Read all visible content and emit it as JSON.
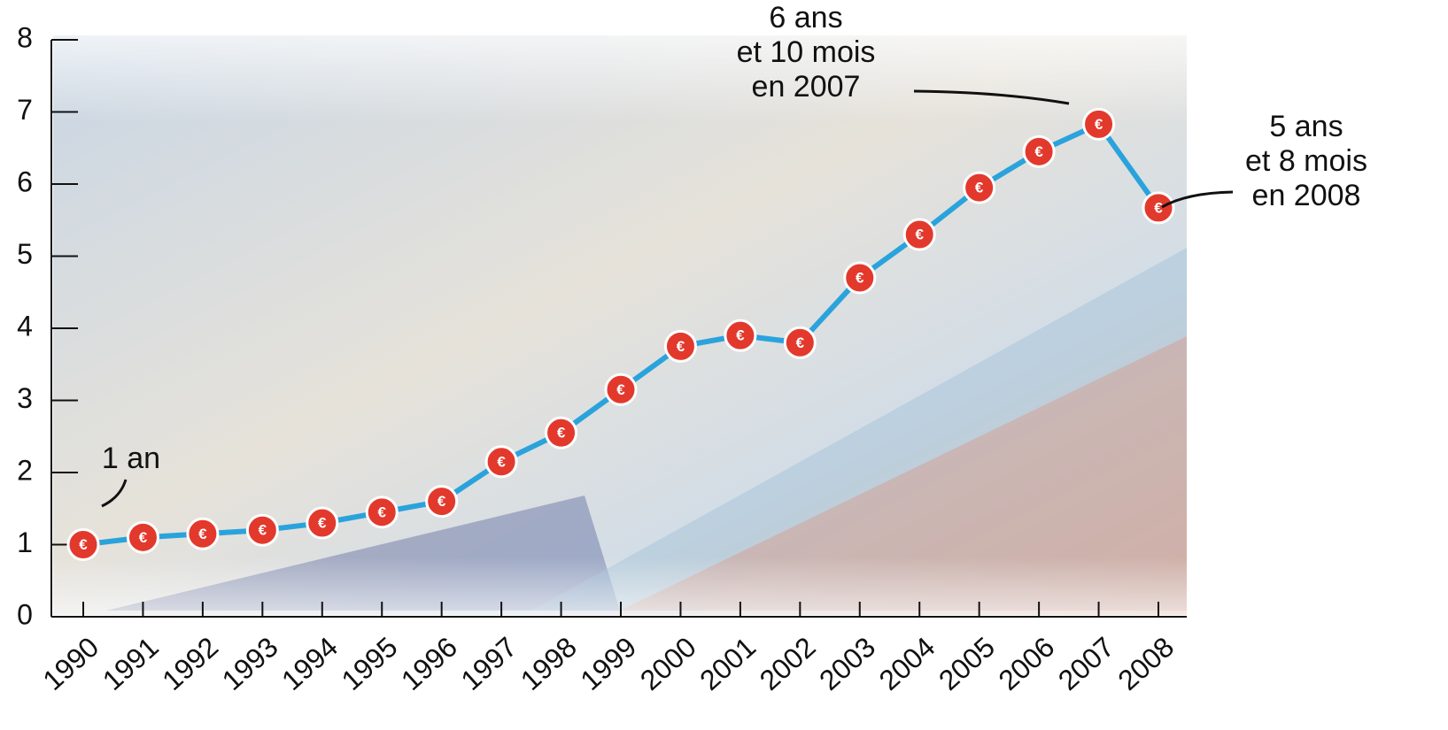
{
  "chart_data": {
    "type": "line",
    "categories": [
      "1990",
      "1991",
      "1992",
      "1993",
      "1994",
      "1995",
      "1996",
      "1997",
      "1998",
      "1999",
      "2000",
      "2001",
      "2002",
      "2003",
      "2004",
      "2005",
      "2006",
      "2007",
      "2008"
    ],
    "series": [
      {
        "color": "#2aa3dc",
        "marker_color": "#e2392c",
        "values": [
          1.0,
          1.1,
          1.15,
          1.2,
          1.3,
          1.45,
          1.6,
          2.15,
          2.55,
          3.15,
          3.75,
          3.9,
          3.8,
          4.7,
          5.3,
          5.95,
          6.45,
          6.83,
          5.67
        ]
      }
    ],
    "marker_symbol": "€",
    "ylim": [
      0,
      8
    ],
    "yticks": [
      0,
      1,
      2,
      3,
      4,
      5,
      6,
      7,
      8
    ],
    "annotations": [
      {
        "lines": [
          "6 ans",
          "et 10 mois",
          "en 2007"
        ]
      },
      {
        "lines": [
          "5 ans",
          "et 8 mois",
          "en 2008"
        ]
      },
      {
        "lines": [
          "1 an"
        ]
      }
    ]
  }
}
